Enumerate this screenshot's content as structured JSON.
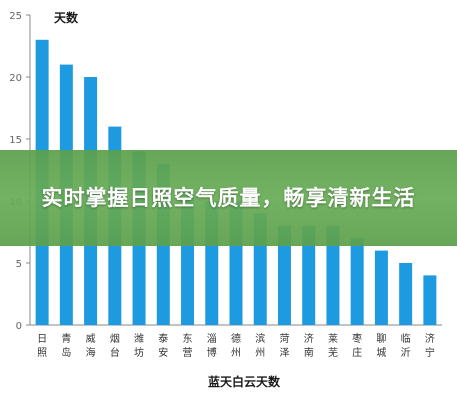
{
  "colors": {
    "bar": "#1e9be0",
    "axis": "#888888",
    "banner": "#5ca04c"
  },
  "banner": {
    "headline": "实时掌握日照空气质量，畅享清新生活"
  },
  "chart_data": {
    "type": "bar",
    "ylabel": "天数",
    "xlabel": "蓝天白云天数",
    "ylim": [
      0,
      25
    ],
    "yticks": [
      0,
      5,
      10,
      15,
      20,
      25
    ],
    "grid": false,
    "categories": [
      [
        "日",
        "照"
      ],
      [
        "青",
        "岛"
      ],
      [
        "威",
        "海"
      ],
      [
        "烟",
        "台"
      ],
      [
        "潍",
        "坊"
      ],
      [
        "泰",
        "安"
      ],
      [
        "东",
        "营"
      ],
      [
        "淄",
        "博"
      ],
      [
        "德",
        "州"
      ],
      [
        "滨",
        "州"
      ],
      [
        "菏",
        "泽"
      ],
      [
        "济",
        "南"
      ],
      [
        "莱",
        "芜"
      ],
      [
        "枣",
        "庄"
      ],
      [
        "聊",
        "城"
      ],
      [
        "临",
        "沂"
      ],
      [
        "济",
        "宁"
      ]
    ],
    "values": [
      23,
      21,
      20,
      16,
      14,
      13,
      11,
      10,
      10,
      9,
      8,
      8,
      8,
      7,
      6,
      5,
      4
    ]
  }
}
